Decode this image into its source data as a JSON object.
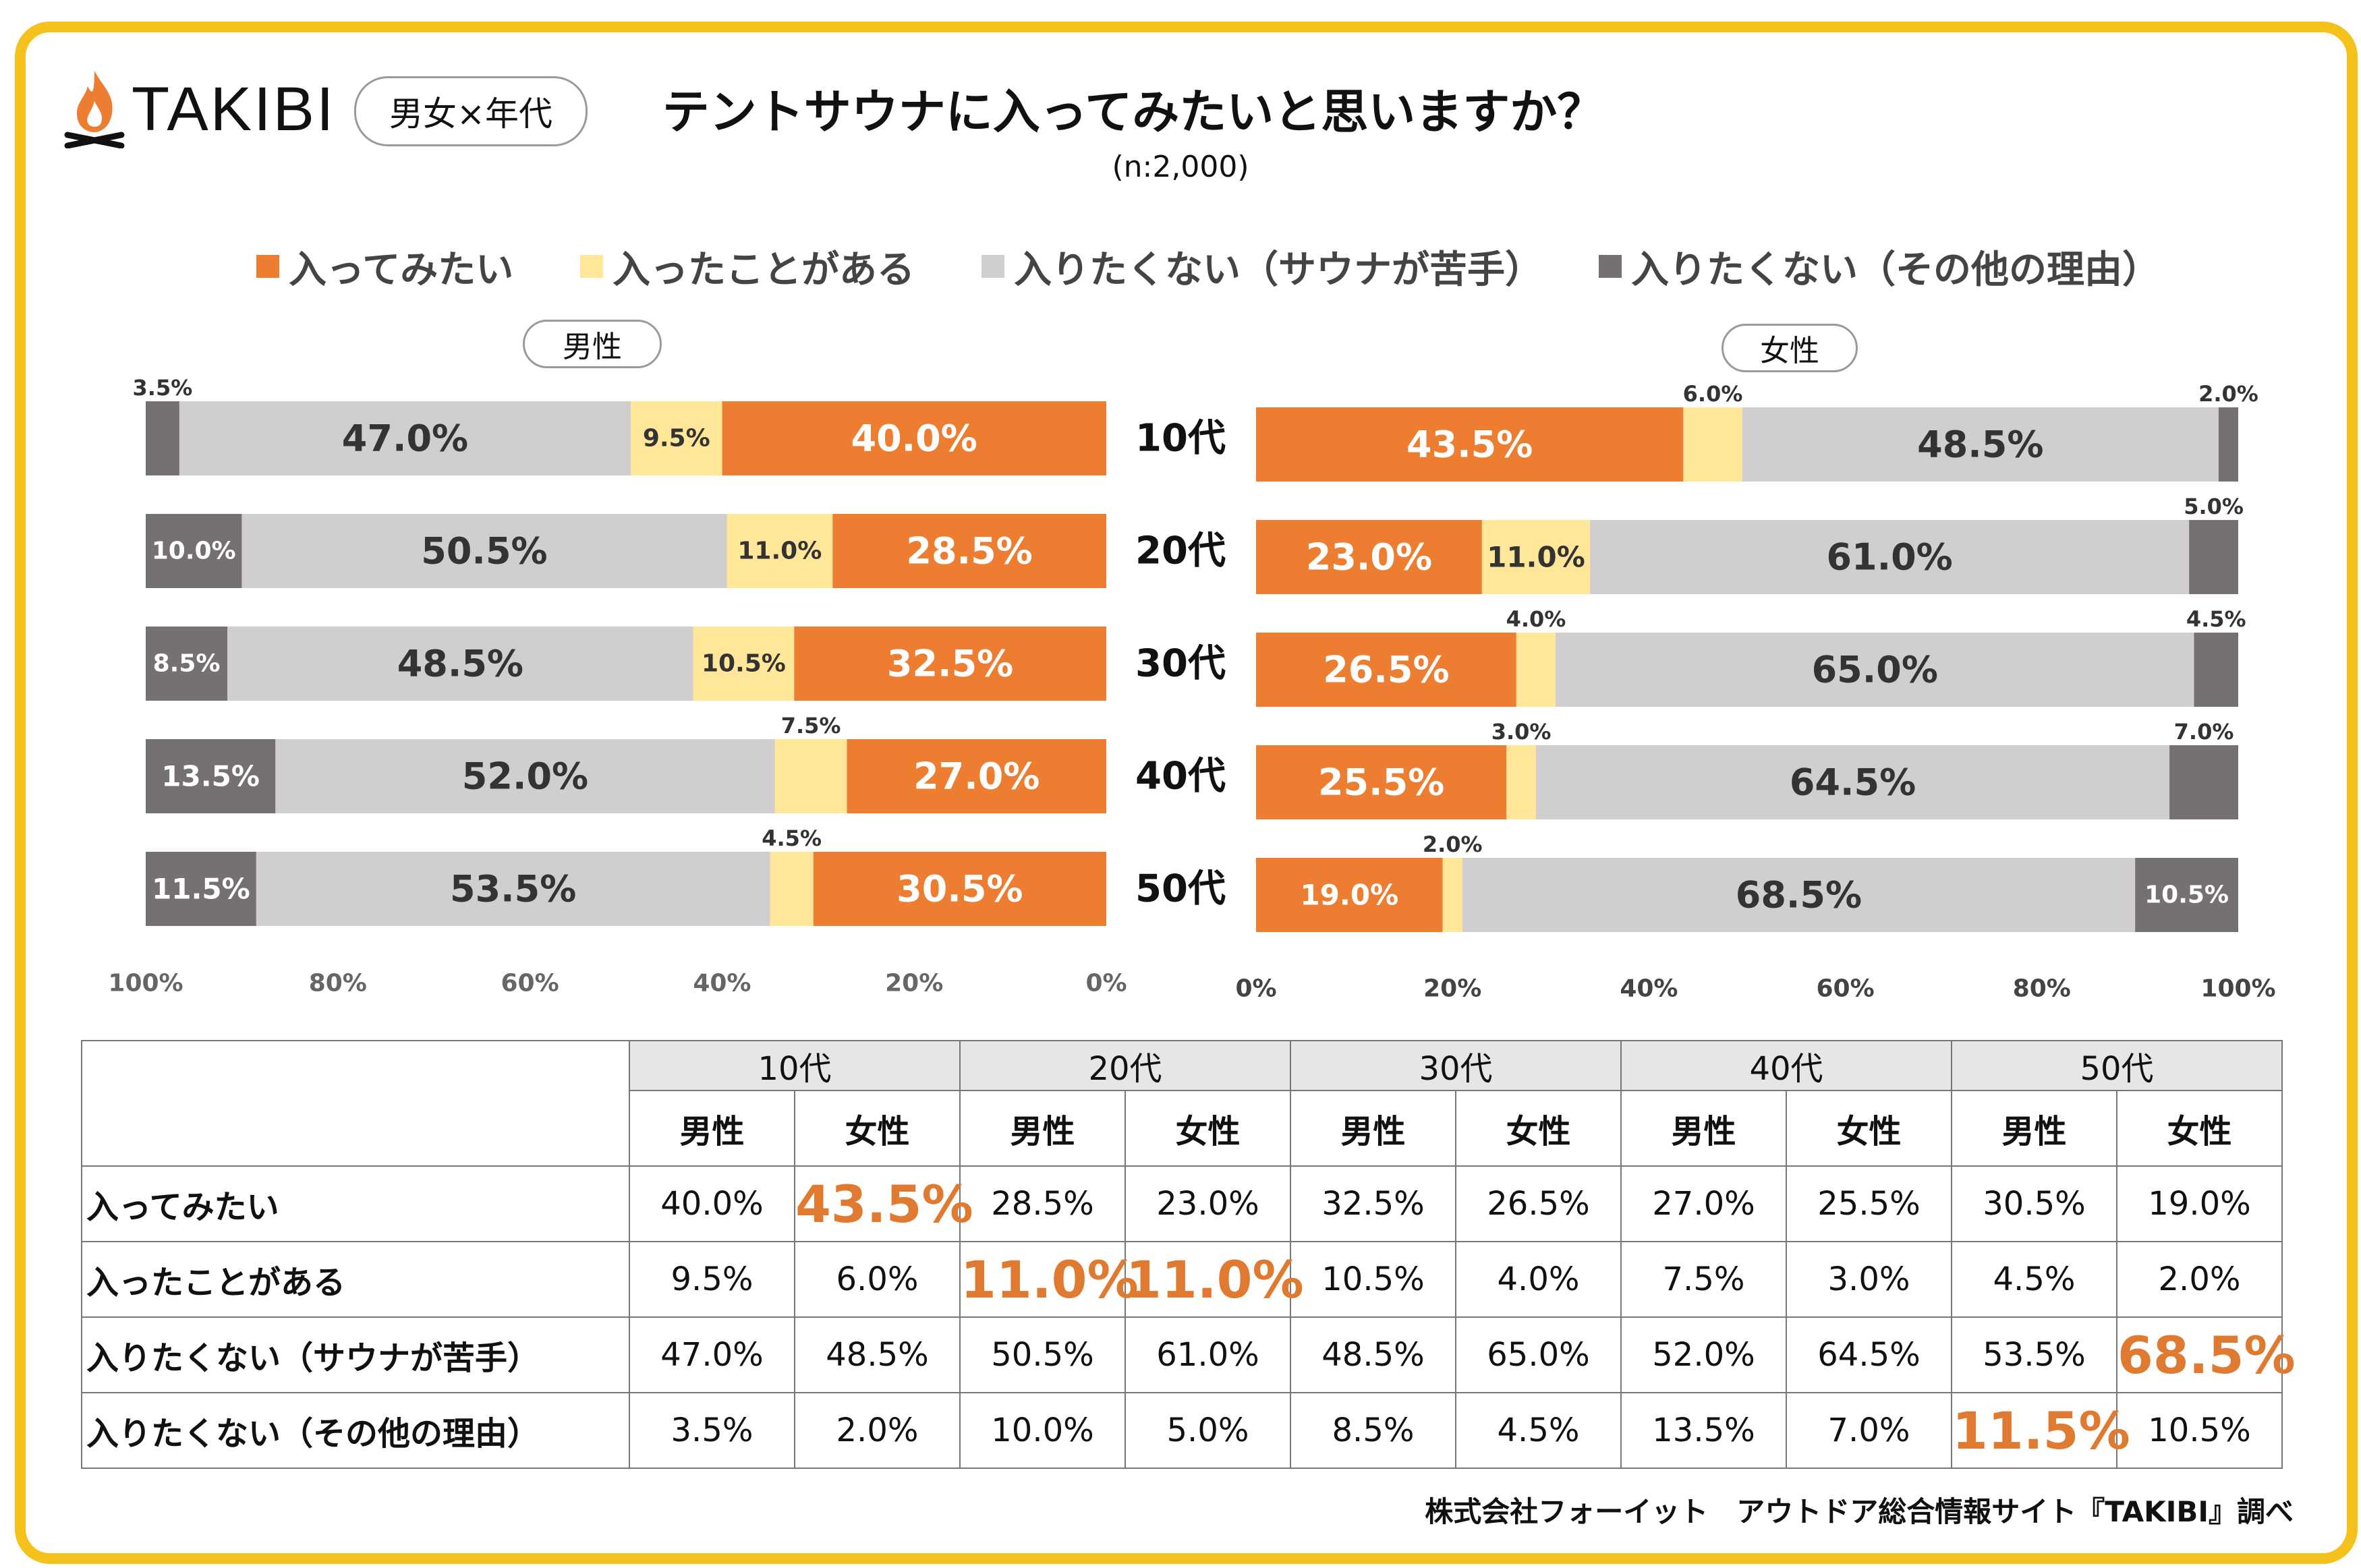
{
  "brand": {
    "name": "TAKIBI",
    "badge": "男女×年代"
  },
  "title": "テントサウナに入ってみたいと思いますか？",
  "subtitle": "(n:2,000)",
  "legend": [
    {
      "label": "入ってみたい",
      "color": "#ed7d31"
    },
    {
      "label": "入ったことがある",
      "color": "#ffe699"
    },
    {
      "label": "入りたくない（サウナが苦手）",
      "color": "#d0cece"
    },
    {
      "label": "入りたくない（その他の理由）",
      "color": "#767171"
    }
  ],
  "panels": {
    "male": "男性",
    "female": "女性"
  },
  "chart_data": [
    {
      "type": "bar",
      "orientation": "horizontal-stacked",
      "panel": "男性",
      "categories": [
        "10代",
        "20代",
        "30代",
        "40代",
        "50代"
      ],
      "series": [
        {
          "name": "入ってみたい",
          "values": [
            40.0,
            28.5,
            32.5,
            27.0,
            30.5
          ]
        },
        {
          "name": "入ったことがある",
          "values": [
            9.5,
            11.0,
            10.5,
            7.5,
            4.5
          ]
        },
        {
          "name": "入りたくない（サウナが苦手）",
          "values": [
            47.0,
            50.5,
            48.5,
            52.0,
            53.5
          ]
        },
        {
          "name": "入りたくない（その他の理由）",
          "values": [
            3.5,
            10.0,
            8.5,
            13.5,
            11.5
          ]
        }
      ],
      "axis_ticks": [
        "100%",
        "80%",
        "60%",
        "40%",
        "20%",
        "0%"
      ],
      "xlim": [
        100,
        0
      ]
    },
    {
      "type": "bar",
      "orientation": "horizontal-stacked",
      "panel": "女性",
      "categories": [
        "10代",
        "20代",
        "30代",
        "40代",
        "50代"
      ],
      "series": [
        {
          "name": "入ってみたい",
          "values": [
            43.5,
            23.0,
            26.5,
            25.5,
            19.0
          ]
        },
        {
          "name": "入ったことがある",
          "values": [
            6.0,
            11.0,
            4.0,
            3.0,
            2.0
          ]
        },
        {
          "name": "入りたくない（サウナが苦手）",
          "values": [
            48.5,
            61.0,
            65.0,
            64.5,
            68.5
          ]
        },
        {
          "name": "入りたくない（その他の理由）",
          "values": [
            2.0,
            5.0,
            4.5,
            7.0,
            10.5
          ]
        }
      ],
      "axis_ticks": [
        "0%",
        "20%",
        "40%",
        "60%",
        "80%",
        "100%"
      ],
      "xlim": [
        0,
        100
      ]
    }
  ],
  "table": {
    "groups": [
      "10代",
      "20代",
      "30代",
      "40代",
      "50代"
    ],
    "subs": [
      "男性",
      "女性"
    ],
    "rows": [
      {
        "label": "入ってみたい",
        "values": [
          "40.0%",
          "43.5%",
          "28.5%",
          "23.0%",
          "32.5%",
          "26.5%",
          "27.0%",
          "25.5%",
          "30.5%",
          "19.0%"
        ],
        "highlight": [
          1
        ]
      },
      {
        "label": "入ったことがある",
        "values": [
          "9.5%",
          "6.0%",
          "11.0%",
          "11.0%",
          "10.5%",
          "4.0%",
          "7.5%",
          "3.0%",
          "4.5%",
          "2.0%"
        ],
        "highlight": [
          2,
          3
        ]
      },
      {
        "label": "入りたくない（サウナが苦手）",
        "values": [
          "47.0%",
          "48.5%",
          "50.5%",
          "61.0%",
          "48.5%",
          "65.0%",
          "52.0%",
          "64.5%",
          "53.5%",
          "68.5%"
        ],
        "highlight": [
          9
        ]
      },
      {
        "label": "入りたくない（その他の理由）",
        "values": [
          "3.5%",
          "2.0%",
          "10.0%",
          "5.0%",
          "8.5%",
          "4.5%",
          "13.5%",
          "7.0%",
          "11.5%",
          "10.5%"
        ],
        "highlight": [
          8
        ]
      }
    ]
  },
  "credit": "株式会社フォーイット　アウトドア総合情報サイト『TAKIBI』調べ"
}
